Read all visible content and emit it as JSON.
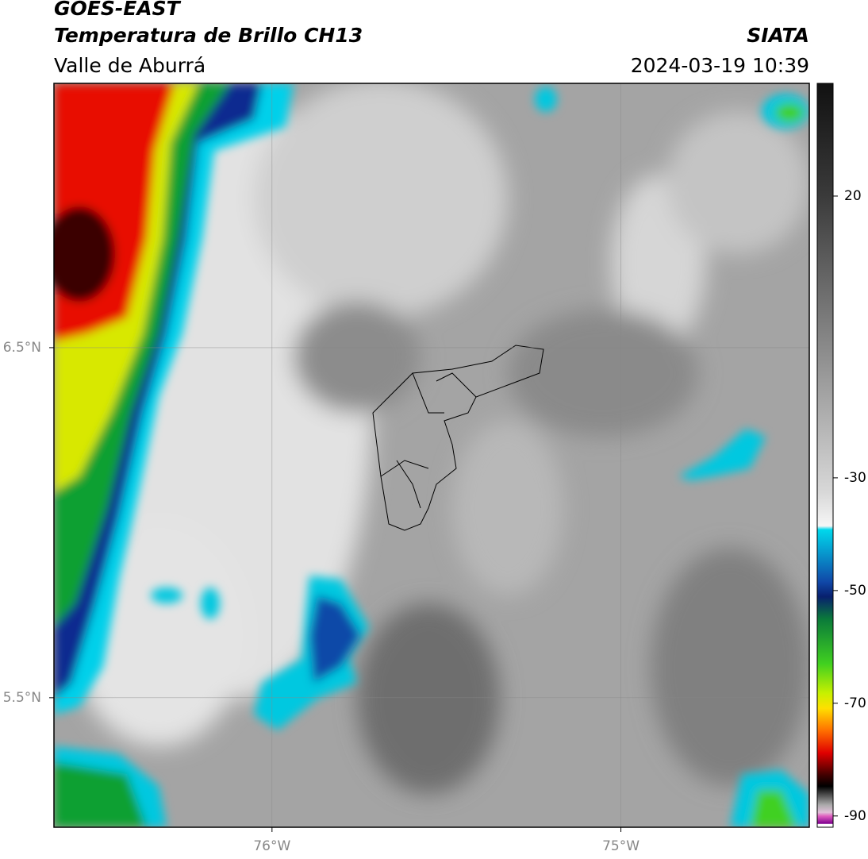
{
  "chart_data": {
    "type": "map",
    "title": "GOES-EAST",
    "subtitle": "Temperatura de Brillo CH13",
    "region": "Valle de Aburrá",
    "source": "SIATA",
    "timestamp": "2024-03-19 10:39",
    "xlim": [
      -76.625,
      -74.46
    ],
    "ylim": [
      5.13,
      7.255
    ],
    "xticks": [
      {
        "value": -76,
        "label": "76°W"
      },
      {
        "value": -75,
        "label": "75°W"
      }
    ],
    "yticks": [
      {
        "value": 5.5,
        "label": "5.5°N"
      },
      {
        "value": 6.5,
        "label": "6.5°N"
      }
    ],
    "grid": true,
    "colorbar": {
      "lim": [
        -92,
        40
      ],
      "ticks": [
        -90,
        -70,
        -50,
        -30,
        20
      ]
    }
  }
}
